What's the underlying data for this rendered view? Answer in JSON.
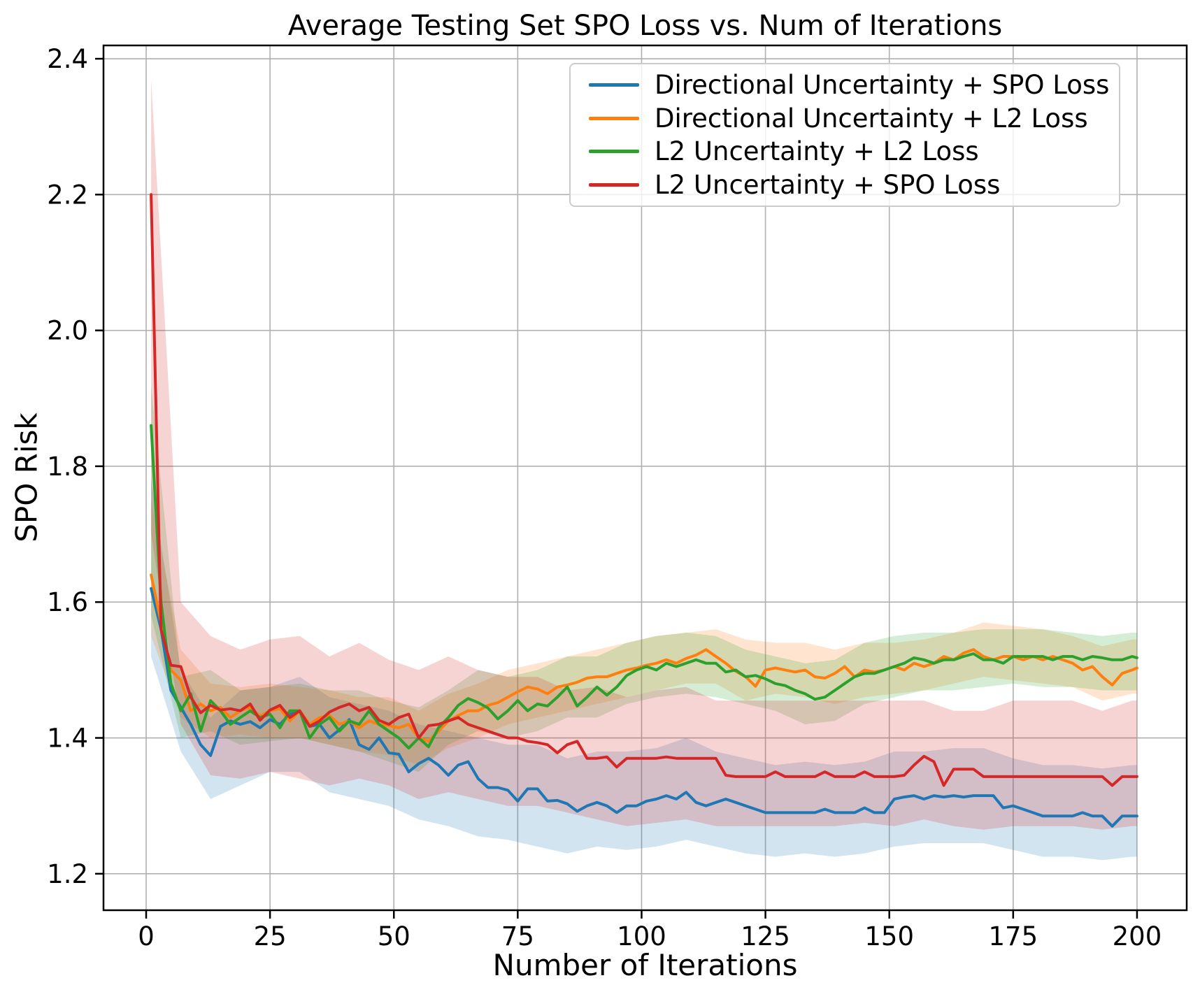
{
  "figure": {
    "title": "Average Testing Set SPO Loss vs. Num of Iterations",
    "xlabel": "Number of Iterations",
    "ylabel": "SPO Risk",
    "background": "#ffffff"
  },
  "legend": {
    "position": "upper right",
    "items": [
      {
        "label": "Directional Uncertainty + SPO Loss",
        "color": "#1f77b4"
      },
      {
        "label": "Directional Uncertainty + L2 Loss",
        "color": "#ff7f0e"
      },
      {
        "label": "L2 Uncertainty + L2 Loss",
        "color": "#2ca02c"
      },
      {
        "label": "L2 Uncertainty + SPO Loss",
        "color": "#d62728"
      }
    ]
  },
  "chart_data": {
    "type": "line",
    "title": "Average Testing Set SPO Loss vs. Num of Iterations",
    "xlabel": "Number of Iterations",
    "ylabel": "SPO Risk",
    "grid": true,
    "grid_color": "#b0b0b0",
    "spine_color": "#000000",
    "legend_position": "upper right",
    "xlim": [
      -8.61,
      210.03
    ],
    "ylim": [
      1.1463,
      2.4196
    ],
    "x_ticks": [
      0,
      25,
      50,
      75,
      100,
      125,
      150,
      175,
      200
    ],
    "y_ticks": [
      1.2,
      1.4,
      1.6,
      1.8,
      2.0,
      2.2,
      2.4
    ],
    "y_tick_labels": [
      "1.2",
      "1.4",
      "1.6",
      "1.8",
      "2.0",
      "2.2",
      "2.4"
    ],
    "x": [
      1,
      3,
      5,
      7,
      9,
      11,
      13,
      15,
      17,
      19,
      21,
      23,
      25,
      27,
      29,
      31,
      33,
      35,
      37,
      39,
      41,
      43,
      45,
      47,
      49,
      51,
      53,
      55,
      57,
      59,
      61,
      63,
      65,
      67,
      69,
      71,
      73,
      75,
      77,
      79,
      81,
      83,
      85,
      87,
      89,
      91,
      93,
      95,
      97,
      99,
      101,
      103,
      105,
      107,
      109,
      111,
      113,
      115,
      117,
      119,
      121,
      123,
      125,
      127,
      129,
      131,
      133,
      135,
      137,
      139,
      141,
      143,
      145,
      147,
      149,
      151,
      153,
      155,
      157,
      159,
      161,
      163,
      165,
      167,
      169,
      171,
      173,
      175,
      177,
      179,
      181,
      183,
      185,
      187,
      189,
      191,
      193,
      195,
      197,
      199,
      200
    ],
    "band_x": [
      1,
      7,
      13,
      19,
      25,
      31,
      37,
      43,
      49,
      55,
      61,
      67,
      73,
      79,
      85,
      91,
      97,
      103,
      109,
      115,
      121,
      127,
      133,
      139,
      145,
      151,
      157,
      163,
      169,
      175,
      181,
      187,
      193,
      199,
      200
    ],
    "band_alpha": 0.2,
    "series": [
      {
        "id": "dir-spo",
        "name": "Directional Uncertainty + SPO Loss",
        "color": "#1f77b4",
        "values": [
          1.62,
          1.56,
          1.47,
          1.445,
          1.42,
          1.39,
          1.374,
          1.417,
          1.425,
          1.42,
          1.424,
          1.415,
          1.427,
          1.42,
          1.435,
          1.439,
          1.417,
          1.42,
          1.4,
          1.412,
          1.427,
          1.39,
          1.383,
          1.4,
          1.378,
          1.376,
          1.35,
          1.362,
          1.37,
          1.36,
          1.345,
          1.36,
          1.365,
          1.34,
          1.327,
          1.327,
          1.323,
          1.307,
          1.325,
          1.325,
          1.307,
          1.308,
          1.303,
          1.292,
          1.3,
          1.305,
          1.3,
          1.29,
          1.3,
          1.3,
          1.307,
          1.31,
          1.315,
          1.31,
          1.32,
          1.305,
          1.3,
          1.305,
          1.31,
          1.305,
          1.3,
          1.295,
          1.29,
          1.29,
          1.29,
          1.29,
          1.29,
          1.29,
          1.295,
          1.29,
          1.29,
          1.29,
          1.297,
          1.29,
          1.29,
          1.31,
          1.313,
          1.315,
          1.31,
          1.315,
          1.313,
          1.315,
          1.313,
          1.315,
          1.315,
          1.315,
          1.297,
          1.3,
          1.295,
          1.29,
          1.285,
          1.285,
          1.285,
          1.285,
          1.29,
          1.285,
          1.285,
          1.27,
          1.285,
          1.285,
          1.285
        ],
        "band_upper": [
          1.78,
          1.5,
          1.43,
          1.47,
          1.475,
          1.49,
          1.46,
          1.45,
          1.44,
          1.42,
          1.41,
          1.4,
          1.39,
          1.39,
          1.37,
          1.38,
          1.38,
          1.385,
          1.4,
          1.38,
          1.37,
          1.36,
          1.365,
          1.36,
          1.365,
          1.38,
          1.38,
          1.385,
          1.385,
          1.37,
          1.36,
          1.36,
          1.355,
          1.36,
          1.36
        ],
        "band_lower": [
          1.52,
          1.38,
          1.31,
          1.33,
          1.35,
          1.35,
          1.32,
          1.31,
          1.3,
          1.28,
          1.27,
          1.255,
          1.25,
          1.24,
          1.23,
          1.24,
          1.235,
          1.24,
          1.25,
          1.24,
          1.23,
          1.225,
          1.23,
          1.225,
          1.23,
          1.24,
          1.245,
          1.245,
          1.245,
          1.235,
          1.225,
          1.225,
          1.22,
          1.225,
          1.225
        ]
      },
      {
        "id": "dir-l2",
        "name": "Directional Uncertainty + L2 Loss",
        "color": "#ff7f0e",
        "values": [
          1.64,
          1.57,
          1.5,
          1.485,
          1.44,
          1.45,
          1.44,
          1.445,
          1.43,
          1.44,
          1.445,
          1.432,
          1.44,
          1.443,
          1.425,
          1.44,
          1.42,
          1.43,
          1.433,
          1.42,
          1.425,
          1.415,
          1.425,
          1.42,
          1.418,
          1.415,
          1.42,
          1.4,
          1.395,
          1.41,
          1.425,
          1.433,
          1.44,
          1.44,
          1.448,
          1.452,
          1.46,
          1.468,
          1.475,
          1.472,
          1.465,
          1.475,
          1.478,
          1.482,
          1.488,
          1.49,
          1.49,
          1.495,
          1.5,
          1.503,
          1.507,
          1.51,
          1.515,
          1.51,
          1.517,
          1.522,
          1.53,
          1.52,
          1.51,
          1.498,
          1.49,
          1.476,
          1.5,
          1.503,
          1.5,
          1.497,
          1.5,
          1.49,
          1.488,
          1.495,
          1.505,
          1.49,
          1.5,
          1.497,
          1.5,
          1.505,
          1.5,
          1.51,
          1.505,
          1.51,
          1.52,
          1.515,
          1.525,
          1.53,
          1.52,
          1.515,
          1.52,
          1.52,
          1.515,
          1.52,
          1.515,
          1.52,
          1.515,
          1.51,
          1.5,
          1.505,
          1.49,
          1.478,
          1.495,
          1.5,
          1.503
        ],
        "band_upper": [
          1.75,
          1.53,
          1.48,
          1.475,
          1.48,
          1.475,
          1.47,
          1.46,
          1.46,
          1.44,
          1.465,
          1.48,
          1.5,
          1.51,
          1.52,
          1.53,
          1.54,
          1.55,
          1.555,
          1.56,
          1.545,
          1.54,
          1.54,
          1.53,
          1.54,
          1.54,
          1.545,
          1.555,
          1.57,
          1.565,
          1.56,
          1.55,
          1.535,
          1.545,
          1.545
        ],
        "band_lower": [
          1.55,
          1.43,
          1.4,
          1.405,
          1.4,
          1.4,
          1.39,
          1.38,
          1.375,
          1.36,
          1.385,
          1.4,
          1.42,
          1.43,
          1.44,
          1.45,
          1.46,
          1.47,
          1.48,
          1.48,
          1.455,
          1.465,
          1.46,
          1.45,
          1.46,
          1.465,
          1.47,
          1.48,
          1.49,
          1.485,
          1.48,
          1.475,
          1.455,
          1.465,
          1.465
        ]
      },
      {
        "id": "l2-l2",
        "name": "L2 Uncertainty + L2 Loss",
        "color": "#2ca02c",
        "values": [
          1.86,
          1.6,
          1.48,
          1.44,
          1.465,
          1.41,
          1.455,
          1.44,
          1.42,
          1.43,
          1.44,
          1.43,
          1.435,
          1.415,
          1.44,
          1.44,
          1.4,
          1.42,
          1.43,
          1.41,
          1.425,
          1.42,
          1.44,
          1.42,
          1.41,
          1.4,
          1.385,
          1.4,
          1.387,
          1.415,
          1.43,
          1.448,
          1.458,
          1.452,
          1.444,
          1.428,
          1.44,
          1.455,
          1.44,
          1.45,
          1.447,
          1.46,
          1.475,
          1.447,
          1.46,
          1.475,
          1.463,
          1.475,
          1.492,
          1.5,
          1.505,
          1.5,
          1.51,
          1.505,
          1.51,
          1.515,
          1.51,
          1.51,
          1.497,
          1.5,
          1.49,
          1.492,
          1.487,
          1.48,
          1.477,
          1.47,
          1.465,
          1.457,
          1.46,
          1.47,
          1.48,
          1.49,
          1.495,
          1.495,
          1.5,
          1.505,
          1.51,
          1.518,
          1.515,
          1.51,
          1.515,
          1.515,
          1.52,
          1.524,
          1.515,
          1.515,
          1.51,
          1.52,
          1.52,
          1.52,
          1.52,
          1.515,
          1.52,
          1.52,
          1.515,
          1.52,
          1.518,
          1.515,
          1.515,
          1.52,
          1.518
        ],
        "band_upper": [
          1.92,
          1.49,
          1.5,
          1.47,
          1.475,
          1.48,
          1.47,
          1.47,
          1.455,
          1.445,
          1.47,
          1.5,
          1.49,
          1.5,
          1.52,
          1.52,
          1.54,
          1.55,
          1.555,
          1.55,
          1.53,
          1.52,
          1.51,
          1.515,
          1.54,
          1.55,
          1.555,
          1.555,
          1.56,
          1.56,
          1.56,
          1.555,
          1.55,
          1.555,
          1.555
        ],
        "band_lower": [
          1.58,
          1.4,
          1.41,
          1.39,
          1.395,
          1.4,
          1.39,
          1.38,
          1.365,
          1.35,
          1.39,
          1.41,
          1.4,
          1.41,
          1.43,
          1.43,
          1.45,
          1.46,
          1.465,
          1.46,
          1.45,
          1.44,
          1.42,
          1.425,
          1.45,
          1.46,
          1.47,
          1.47,
          1.475,
          1.48,
          1.475,
          1.475,
          1.47,
          1.47,
          1.47
        ]
      },
      {
        "id": "l2-spo",
        "name": "L2 Uncertainty + SPO Loss",
        "color": "#d62728",
        "values": [
          2.2,
          1.56,
          1.507,
          1.505,
          1.46,
          1.437,
          1.448,
          1.441,
          1.443,
          1.44,
          1.45,
          1.426,
          1.441,
          1.448,
          1.43,
          1.44,
          1.417,
          1.425,
          1.438,
          1.445,
          1.45,
          1.44,
          1.445,
          1.426,
          1.42,
          1.43,
          1.435,
          1.4,
          1.418,
          1.42,
          1.425,
          1.43,
          1.42,
          1.415,
          1.41,
          1.405,
          1.4,
          1.4,
          1.395,
          1.393,
          1.39,
          1.378,
          1.39,
          1.395,
          1.37,
          1.37,
          1.372,
          1.357,
          1.37,
          1.37,
          1.37,
          1.37,
          1.372,
          1.37,
          1.37,
          1.37,
          1.37,
          1.37,
          1.345,
          1.343,
          1.343,
          1.343,
          1.343,
          1.35,
          1.343,
          1.343,
          1.343,
          1.343,
          1.35,
          1.343,
          1.343,
          1.343,
          1.35,
          1.343,
          1.343,
          1.343,
          1.345,
          1.36,
          1.373,
          1.365,
          1.33,
          1.354,
          1.354,
          1.354,
          1.343,
          1.343,
          1.343,
          1.343,
          1.343,
          1.343,
          1.343,
          1.343,
          1.343,
          1.343,
          1.343,
          1.343,
          1.343,
          1.33,
          1.343,
          1.343,
          1.343
        ],
        "band_upper": [
          2.37,
          1.6,
          1.55,
          1.53,
          1.545,
          1.55,
          1.52,
          1.54,
          1.515,
          1.5,
          1.52,
          1.5,
          1.49,
          1.49,
          1.47,
          1.475,
          1.46,
          1.47,
          1.475,
          1.455,
          1.455,
          1.455,
          1.455,
          1.455,
          1.455,
          1.455,
          1.455,
          1.44,
          1.44,
          1.455,
          1.455,
          1.455,
          1.44,
          1.455,
          1.455
        ],
        "band_lower": [
          1.7,
          1.42,
          1.345,
          1.34,
          1.35,
          1.34,
          1.33,
          1.34,
          1.33,
          1.31,
          1.32,
          1.31,
          1.3,
          1.3,
          1.29,
          1.28,
          1.27,
          1.275,
          1.28,
          1.27,
          1.27,
          1.27,
          1.27,
          1.27,
          1.275,
          1.27,
          1.28,
          1.27,
          1.265,
          1.27,
          1.27,
          1.27,
          1.265,
          1.27,
          1.27
        ]
      }
    ]
  }
}
